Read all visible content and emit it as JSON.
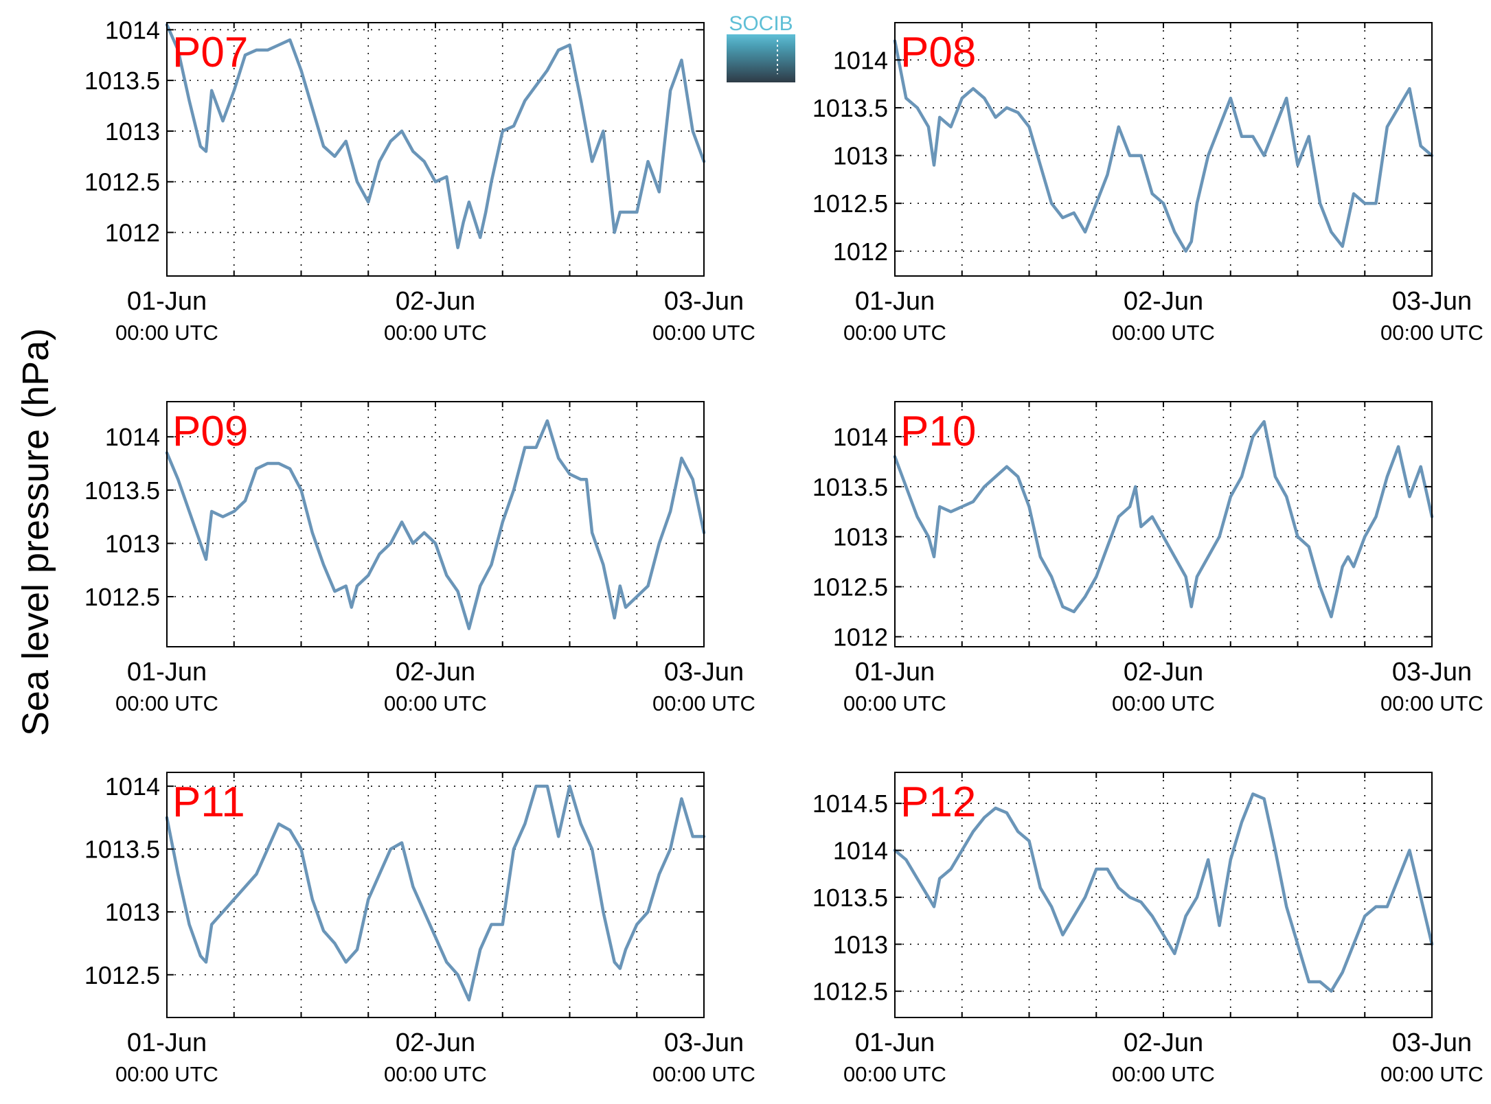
{
  "ylabel": "Sea level pressure (hPa)",
  "logo": {
    "text": "SOCIB",
    "color_top": "#5fbfd6",
    "color_bottom": "#2e3b47"
  },
  "series_color": "#6a95b8",
  "label_color": "#ff0000",
  "chart_data": [
    {
      "type": "line",
      "label": "P07",
      "x_unit": "hours since 01-Jun 00:00 UTC",
      "xlim": [
        0,
        48
      ],
      "ylim": [
        1011.57,
        1014.07
      ],
      "yticks": [
        1012,
        1012.5,
        1013,
        1013.5,
        1014
      ],
      "ytick_labels": [
        "1012",
        "1012.5",
        "1013",
        "1013.5",
        "1014"
      ],
      "xticks": [
        0,
        24,
        48
      ],
      "xtick_labels": [
        "01-Jun",
        "02-Jun",
        "03-Jun"
      ],
      "xtick_sublabels": [
        "00:00 UTC",
        "00:00 UTC",
        "00:00 UTC"
      ],
      "grid": true,
      "x": [
        0,
        1,
        2,
        3,
        3.5,
        4,
        5,
        6,
        7,
        8,
        9,
        10,
        11,
        12,
        14,
        15,
        16,
        17,
        18,
        19,
        20,
        21,
        22,
        23,
        24,
        25,
        26,
        26.5,
        27,
        28,
        28.5,
        29,
        30,
        31,
        32,
        33,
        34,
        35,
        36,
        37,
        38,
        39,
        40,
        40.5,
        41,
        42,
        43,
        44,
        45,
        46,
        47,
        48
      ],
      "y": [
        1014.05,
        1013.8,
        1013.3,
        1012.85,
        1012.8,
        1013.4,
        1013.1,
        1013.4,
        1013.75,
        1013.8,
        1013.8,
        1013.85,
        1013.9,
        1013.6,
        1012.85,
        1012.75,
        1012.9,
        1012.5,
        1012.3,
        1012.7,
        1012.9,
        1013.0,
        1012.8,
        1012.7,
        1012.5,
        1012.55,
        1011.85,
        1012.1,
        1012.3,
        1011.95,
        1012.2,
        1012.5,
        1013.0,
        1013.05,
        1013.3,
        1013.45,
        1013.6,
        1013.8,
        1013.85,
        1013.3,
        1012.7,
        1013.0,
        1012.0,
        1012.2,
        1012.2,
        1012.2,
        1012.7,
        1012.4,
        1013.4,
        1013.7,
        1013.0,
        1012.7
      ]
    },
    {
      "type": "line",
      "label": "P08",
      "x_unit": "hours since 01-Jun 00:00 UTC",
      "xlim": [
        0,
        48
      ],
      "ylim": [
        1011.74,
        1014.39
      ],
      "yticks": [
        1012,
        1012.5,
        1013,
        1013.5,
        1014
      ],
      "ytick_labels": [
        "1012",
        "1012.5",
        "1013",
        "1013.5",
        "1014"
      ],
      "xticks": [
        0,
        24,
        48
      ],
      "xtick_labels": [
        "01-Jun",
        "02-Jun",
        "03-Jun"
      ],
      "xtick_sublabels": [
        "00:00 UTC",
        "00:00 UTC",
        "00:00 UTC"
      ],
      "grid": true,
      "x": [
        0,
        1,
        2,
        3,
        3.5,
        4,
        5,
        6,
        7,
        8,
        9,
        10,
        11,
        12,
        13,
        14,
        15,
        16,
        17,
        18,
        19,
        20,
        21,
        22,
        23,
        24,
        25,
        26,
        26.5,
        27,
        28,
        29,
        30,
        31,
        32,
        33,
        34,
        35,
        36,
        37,
        38,
        39,
        40,
        41,
        42,
        43,
        44,
        45,
        46,
        47,
        48
      ],
      "y": [
        1014.2,
        1013.6,
        1013.5,
        1013.3,
        1012.9,
        1013.4,
        1013.3,
        1013.6,
        1013.7,
        1013.6,
        1013.4,
        1013.5,
        1013.45,
        1013.3,
        1012.9,
        1012.5,
        1012.35,
        1012.4,
        1012.2,
        1012.5,
        1012.8,
        1013.3,
        1013.0,
        1013.0,
        1012.6,
        1012.5,
        1012.2,
        1012.0,
        1012.1,
        1012.5,
        1013.0,
        1013.3,
        1013.6,
        1013.2,
        1013.2,
        1013.0,
        1013.3,
        1013.6,
        1012.9,
        1013.2,
        1012.5,
        1012.2,
        1012.05,
        1012.6,
        1012.5,
        1012.5,
        1013.3,
        1013.5,
        1013.7,
        1013.1,
        1013.0
      ]
    },
    {
      "type": "line",
      "label": "P09",
      "x_unit": "hours since 01-Jun 00:00 UTC",
      "xlim": [
        0,
        48
      ],
      "ylim": [
        1012.03,
        1014.33
      ],
      "yticks": [
        1012.5,
        1013,
        1013.5,
        1014
      ],
      "ytick_labels": [
        "1012.5",
        "1013",
        "1013.5",
        "1014"
      ],
      "xticks": [
        0,
        24,
        48
      ],
      "xtick_labels": [
        "01-Jun",
        "02-Jun",
        "03-Jun"
      ],
      "xtick_sublabels": [
        "00:00 UTC",
        "00:00 UTC",
        "00:00 UTC"
      ],
      "grid": true,
      "x": [
        0,
        1,
        2,
        3,
        3.5,
        4,
        5,
        6,
        7,
        8,
        9,
        10,
        11,
        12,
        13,
        14,
        15,
        16,
        16.5,
        17,
        18,
        19,
        20,
        21,
        22,
        23,
        24,
        25,
        26,
        27,
        28,
        29,
        30,
        31,
        32,
        33,
        34,
        35,
        36,
        37,
        37.5,
        38,
        39,
        40,
        40.5,
        41,
        42,
        43,
        44,
        45,
        46,
        47,
        48
      ],
      "y": [
        1013.85,
        1013.6,
        1013.3,
        1013.0,
        1012.85,
        1013.3,
        1013.25,
        1013.3,
        1013.4,
        1013.7,
        1013.75,
        1013.75,
        1013.7,
        1013.5,
        1013.1,
        1012.8,
        1012.55,
        1012.6,
        1012.4,
        1012.6,
        1012.7,
        1012.9,
        1013.0,
        1013.2,
        1013.0,
        1013.1,
        1013.0,
        1012.7,
        1012.55,
        1012.2,
        1012.6,
        1012.8,
        1013.2,
        1013.5,
        1013.9,
        1013.9,
        1014.15,
        1013.8,
        1013.65,
        1013.6,
        1013.6,
        1013.1,
        1012.8,
        1012.3,
        1012.6,
        1012.4,
        1012.5,
        1012.6,
        1013.0,
        1013.3,
        1013.8,
        1013.6,
        1013.1
      ]
    },
    {
      "type": "line",
      "label": "P10",
      "x_unit": "hours since 01-Jun 00:00 UTC",
      "xlim": [
        0,
        48
      ],
      "ylim": [
        1011.9,
        1014.35
      ],
      "yticks": [
        1012,
        1012.5,
        1013,
        1013.5,
        1014
      ],
      "ytick_labels": [
        "1012",
        "1012.5",
        "1013",
        "1013.5",
        "1014"
      ],
      "xticks": [
        0,
        24,
        48
      ],
      "xtick_labels": [
        "01-Jun",
        "02-Jun",
        "03-Jun"
      ],
      "xtick_sublabels": [
        "00:00 UTC",
        "00:00 UTC",
        "00:00 UTC"
      ],
      "grid": true,
      "x": [
        0,
        1,
        2,
        3,
        3.5,
        4,
        5,
        6,
        7,
        8,
        9,
        10,
        11,
        12,
        13,
        14,
        15,
        16,
        17,
        18,
        19,
        20,
        21,
        21.5,
        22,
        23,
        24,
        25,
        26,
        26.5,
        27,
        28,
        29,
        30,
        31,
        32,
        33,
        34,
        35,
        36,
        37,
        38,
        39,
        40,
        40.5,
        41,
        42,
        43,
        44,
        45,
        46,
        47,
        48
      ],
      "y": [
        1013.8,
        1013.5,
        1013.2,
        1013.0,
        1012.8,
        1013.3,
        1013.25,
        1013.3,
        1013.35,
        1013.5,
        1013.6,
        1013.7,
        1013.6,
        1013.3,
        1012.8,
        1012.6,
        1012.3,
        1012.25,
        1012.4,
        1012.6,
        1012.9,
        1013.2,
        1013.3,
        1013.5,
        1013.1,
        1013.2,
        1013.0,
        1012.8,
        1012.6,
        1012.3,
        1012.6,
        1012.8,
        1013.0,
        1013.4,
        1013.6,
        1014.0,
        1014.15,
        1013.6,
        1013.4,
        1013.0,
        1012.9,
        1012.5,
        1012.2,
        1012.7,
        1012.8,
        1012.7,
        1013.0,
        1013.2,
        1013.6,
        1013.9,
        1013.4,
        1013.7,
        1013.2
      ]
    },
    {
      "type": "line",
      "label": "P11",
      "x_unit": "hours since 01-Jun 00:00 UTC",
      "xlim": [
        0,
        48
      ],
      "ylim": [
        1012.16,
        1014.11
      ],
      "yticks": [
        1012.5,
        1013,
        1013.5,
        1014
      ],
      "ytick_labels": [
        "1012.5",
        "1013",
        "1013.5",
        "1014"
      ],
      "xticks": [
        0,
        24,
        48
      ],
      "xtick_labels": [
        "01-Jun",
        "02-Jun",
        "03-Jun"
      ],
      "xtick_sublabels": [
        "00:00 UTC",
        "00:00 UTC",
        "00:00 UTC"
      ],
      "grid": true,
      "x": [
        0,
        1,
        2,
        3,
        3.5,
        4,
        5,
        6,
        7,
        8,
        9,
        10,
        11,
        12,
        13,
        14,
        15,
        16,
        17,
        18,
        19,
        20,
        21,
        22,
        23,
        24,
        25,
        26,
        27,
        28,
        29,
        30,
        31,
        32,
        33,
        34,
        35,
        36,
        37,
        38,
        39,
        40,
        40.5,
        41,
        42,
        43,
        44,
        45,
        46,
        47,
        48
      ],
      "y": [
        1013.75,
        1013.3,
        1012.9,
        1012.65,
        1012.6,
        1012.9,
        1013.0,
        1013.1,
        1013.2,
        1013.3,
        1013.5,
        1013.7,
        1013.65,
        1013.5,
        1013.1,
        1012.85,
        1012.75,
        1012.6,
        1012.7,
        1013.1,
        1013.3,
        1013.5,
        1013.55,
        1013.2,
        1013.0,
        1012.8,
        1012.6,
        1012.5,
        1012.3,
        1012.7,
        1012.9,
        1012.9,
        1013.5,
        1013.7,
        1014.0,
        1014.0,
        1013.6,
        1014.0,
        1013.7,
        1013.5,
        1013.0,
        1012.6,
        1012.55,
        1012.7,
        1012.9,
        1013.0,
        1013.3,
        1013.5,
        1013.9,
        1013.6,
        1013.6
      ]
    },
    {
      "type": "line",
      "label": "P12",
      "x_unit": "hours since 01-Jun 00:00 UTC",
      "xlim": [
        0,
        48
      ],
      "ylim": [
        1012.22,
        1014.83
      ],
      "yticks": [
        1012.5,
        1013,
        1013.5,
        1014,
        1014.5
      ],
      "ytick_labels": [
        "1012.5",
        "1013",
        "1013.5",
        "1014",
        "1014.5"
      ],
      "xticks": [
        0,
        24,
        48
      ],
      "xtick_labels": [
        "01-Jun",
        "02-Jun",
        "03-Jun"
      ],
      "xtick_sublabels": [
        "00:00 UTC",
        "00:00 UTC",
        "00:00 UTC"
      ],
      "grid": true,
      "x": [
        0,
        1,
        2,
        3,
        3.5,
        4,
        5,
        6,
        7,
        8,
        9,
        10,
        11,
        12,
        13,
        14,
        15,
        16,
        17,
        18,
        19,
        20,
        21,
        22,
        23,
        24,
        25,
        26,
        27,
        28,
        29,
        30,
        31,
        32,
        33,
        34,
        35,
        36,
        37,
        38,
        39,
        40,
        41,
        42,
        43,
        44,
        45,
        46,
        47,
        48
      ],
      "y": [
        1014.0,
        1013.9,
        1013.7,
        1013.5,
        1013.4,
        1013.7,
        1013.8,
        1014.0,
        1014.2,
        1014.35,
        1014.45,
        1014.4,
        1014.2,
        1014.1,
        1013.6,
        1013.4,
        1013.1,
        1013.3,
        1013.5,
        1013.8,
        1013.8,
        1013.6,
        1013.5,
        1013.45,
        1013.3,
        1013.1,
        1012.9,
        1013.3,
        1013.5,
        1013.9,
        1013.2,
        1013.9,
        1014.3,
        1014.6,
        1014.55,
        1014.0,
        1013.4,
        1013.0,
        1012.6,
        1012.6,
        1012.5,
        1012.7,
        1013.0,
        1013.3,
        1013.4,
        1013.4,
        1013.7,
        1014.0,
        1013.5,
        1013.0
      ]
    }
  ]
}
